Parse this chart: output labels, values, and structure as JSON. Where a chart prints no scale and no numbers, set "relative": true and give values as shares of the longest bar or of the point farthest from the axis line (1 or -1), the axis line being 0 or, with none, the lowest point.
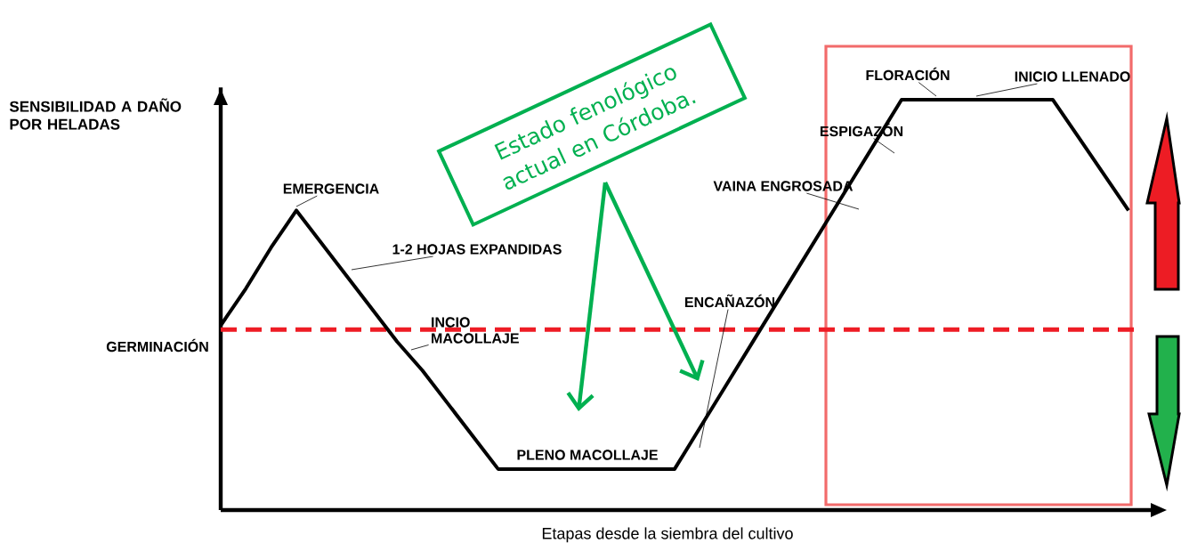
{
  "chart_data": {
    "type": "line",
    "relative": true,
    "xlabel": "Etapas desde la siembra del cultivo",
    "ylabel": "SENSIBILIDAD A DAÑO POR HELADAS",
    "categories": [
      null,
      null,
      null,
      null,
      null,
      null,
      null,
      null,
      null,
      null,
      null,
      null,
      null,
      null,
      null,
      null,
      null,
      null,
      null,
      null,
      null,
      null,
      null,
      null,
      null,
      null,
      null,
      null,
      null,
      null,
      null,
      null,
      null,
      null,
      null,
      null,
      null
    ],
    "series": [
      {
        "color": "#000000",
        "values": [
          0.45,
          0.54,
          0.64,
          0.73,
          0.65,
          0.57,
          0.49,
          0.41,
          0.34,
          0.26,
          0.18,
          0.1,
          0.1,
          0.1,
          0.1,
          0.1,
          0.1,
          0.1,
          0.1,
          0.2,
          0.3,
          0.4,
          0.5,
          0.6,
          0.7,
          0.8,
          0.9,
          1,
          1,
          1,
          1,
          1,
          1,
          1,
          0.91,
          0.82,
          0.73
        ]
      }
    ],
    "marker": "none",
    "line_style": "solid",
    "ref_lines": [
      {
        "axis": "y",
        "value": 0.44,
        "color": "#ee1c25",
        "line_style": "dashed"
      }
    ],
    "annotations": [
      "GERMINACIÓN",
      "EMERGENCIA",
      "1-2 HOJAS EXPANDIDAS",
      "INCIO MACOLLAJE",
      "PLENO MACOLLAJE",
      "ENCAÑAZÓN",
      "VAINA ENGROSADA",
      "ESPIGAZÓN",
      "FLORACIÓN",
      "INICIO LLENADO",
      "Estado fenológico actual en Córdoba."
    ]
  }
}
